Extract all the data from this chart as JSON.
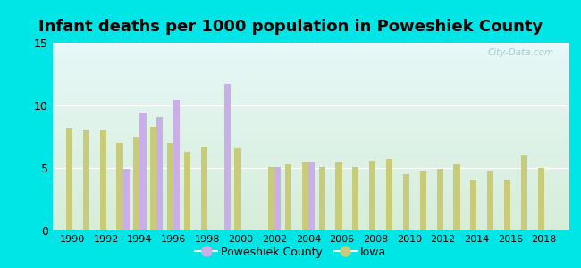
{
  "title": "Infant deaths per 1000 population in Poweshiek County",
  "years": [
    1990,
    1991,
    1992,
    1993,
    1994,
    1995,
    1996,
    1997,
    1998,
    1999,
    2000,
    2001,
    2002,
    2003,
    2004,
    2005,
    2006,
    2007,
    2008,
    2009,
    2010,
    2011,
    2012,
    2013,
    2014,
    2015,
    2016,
    2017,
    2018
  ],
  "iowa_values": [
    8.2,
    8.1,
    8.0,
    7.0,
    7.5,
    8.3,
    7.0,
    6.3,
    6.7,
    null,
    6.6,
    null,
    5.1,
    5.3,
    5.5,
    5.1,
    5.5,
    5.1,
    5.6,
    5.7,
    4.5,
    4.8,
    4.9,
    5.3,
    4.1,
    4.8,
    4.1,
    6.0,
    5.0
  ],
  "county_values": [
    null,
    null,
    null,
    4.9,
    9.4,
    9.1,
    10.4,
    null,
    null,
    11.7,
    null,
    null,
    5.1,
    null,
    5.5,
    null,
    null,
    null,
    null,
    null,
    null,
    null,
    null,
    null,
    null,
    null,
    null,
    null,
    null
  ],
  "iowa_color": "#c8cc7a",
  "county_color": "#c9aee8",
  "outer_bg": "#00e5e5",
  "plot_bg_top": "#cceee8",
  "plot_bg_bottom": "#d8edcc",
  "ylim": [
    0,
    15
  ],
  "yticks": [
    0,
    5,
    10,
    15
  ],
  "bar_width": 0.38,
  "title_fontsize": 13,
  "watermark": "City-Data.com",
  "xtick_years": [
    1990,
    1992,
    1994,
    1996,
    1998,
    2000,
    2002,
    2004,
    2006,
    2008,
    2010,
    2012,
    2014,
    2016,
    2018
  ]
}
